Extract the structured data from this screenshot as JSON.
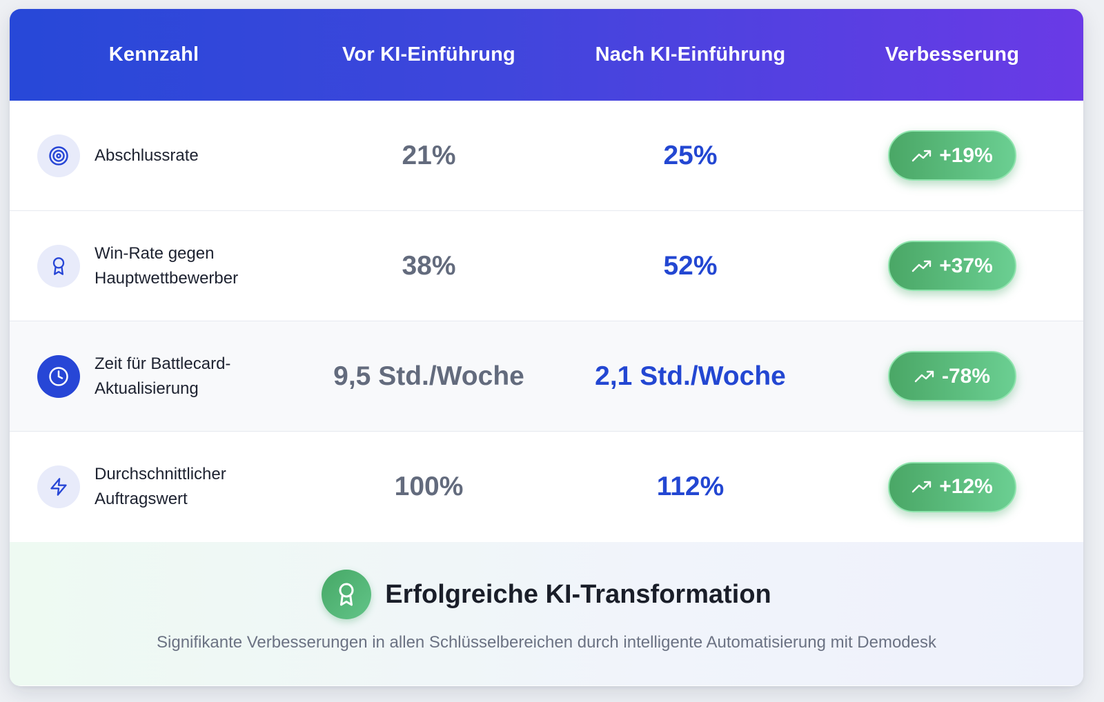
{
  "header": {
    "metric": "Kennzahl",
    "before": "Vor KI-Einführung",
    "after": "Nach KI-Einführung",
    "improvement": "Verbesserung"
  },
  "rows": [
    {
      "label": "Abschlussrate",
      "icon": "target-icon",
      "before": "21%",
      "after": "25%",
      "improvement": "+19%"
    },
    {
      "label": "Win-Rate gegen Hauptwettbewerber",
      "icon": "award-icon",
      "before": "38%",
      "after": "52%",
      "improvement": "+37%"
    },
    {
      "label": "Zeit für Battlecard-Aktualisierung",
      "icon": "clock-icon",
      "before": "9,5 Std./Woche",
      "after": "2,1 Std./Woche",
      "improvement": "-78%"
    },
    {
      "label": "Durchschnittlicher Auftragswert",
      "icon": "lightning-icon",
      "before": "100%",
      "after": "112%",
      "improvement": "+12%"
    }
  ],
  "footer": {
    "title": "Erfolgreiche KI-Transformation",
    "subtitle": "Signifikante Verbesserungen in allen Schlüsselbereichen durch intelligente Automatisierung mit Demodesk",
    "icon": "award-icon"
  },
  "colors": {
    "header_start": "#2748d8",
    "header_end": "#6a3ae6",
    "accent_blue": "#2347d2",
    "success_green": "#4aa766"
  }
}
